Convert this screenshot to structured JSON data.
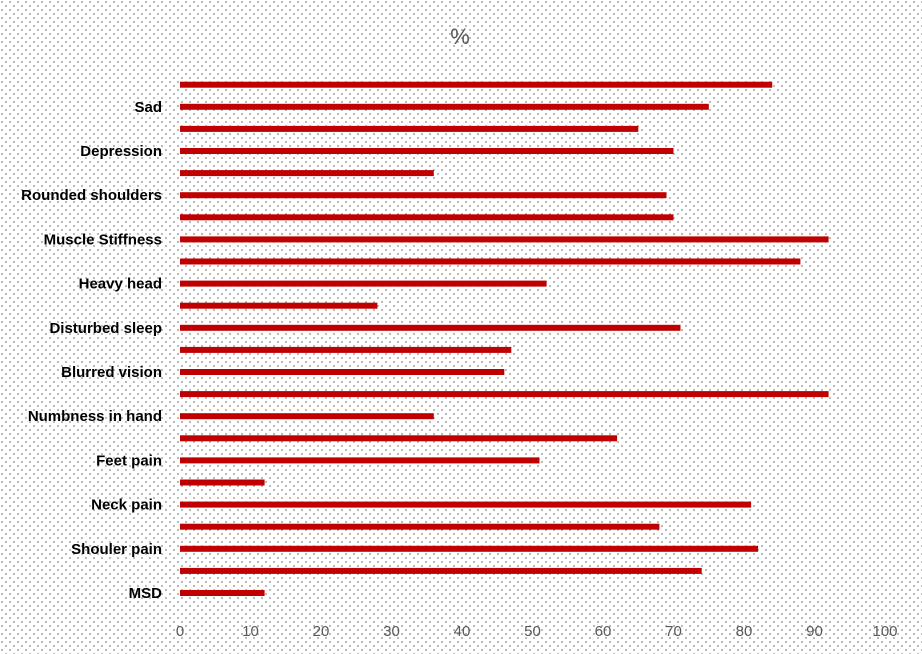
{
  "chart_data": {
    "type": "bar",
    "orientation": "horizontal",
    "title": "%",
    "xlabel": "",
    "ylabel": "",
    "xlim": [
      0,
      100
    ],
    "x_ticks": [
      0,
      10,
      20,
      30,
      40,
      50,
      60,
      70,
      80,
      90,
      100
    ],
    "categories": [
      "MSD",
      "",
      "Shouler pain",
      "",
      "Neck pain",
      "",
      "Feet pain",
      "",
      "Numbness in hand",
      "",
      "Blurred vision",
      "",
      "Disturbed sleep",
      "",
      "Heavy head",
      "",
      "Muscle Stiffness",
      "",
      "Rounded shoulders",
      "",
      "Depression",
      "",
      "Sad",
      ""
    ],
    "values": [
      12,
      74,
      82,
      68,
      81,
      12,
      51,
      62,
      36,
      92,
      46,
      47,
      71,
      28,
      52,
      88,
      92,
      70,
      69,
      36,
      70,
      65,
      75,
      84
    ],
    "bar_color": "#c00000",
    "grid": false,
    "legend": "none"
  }
}
